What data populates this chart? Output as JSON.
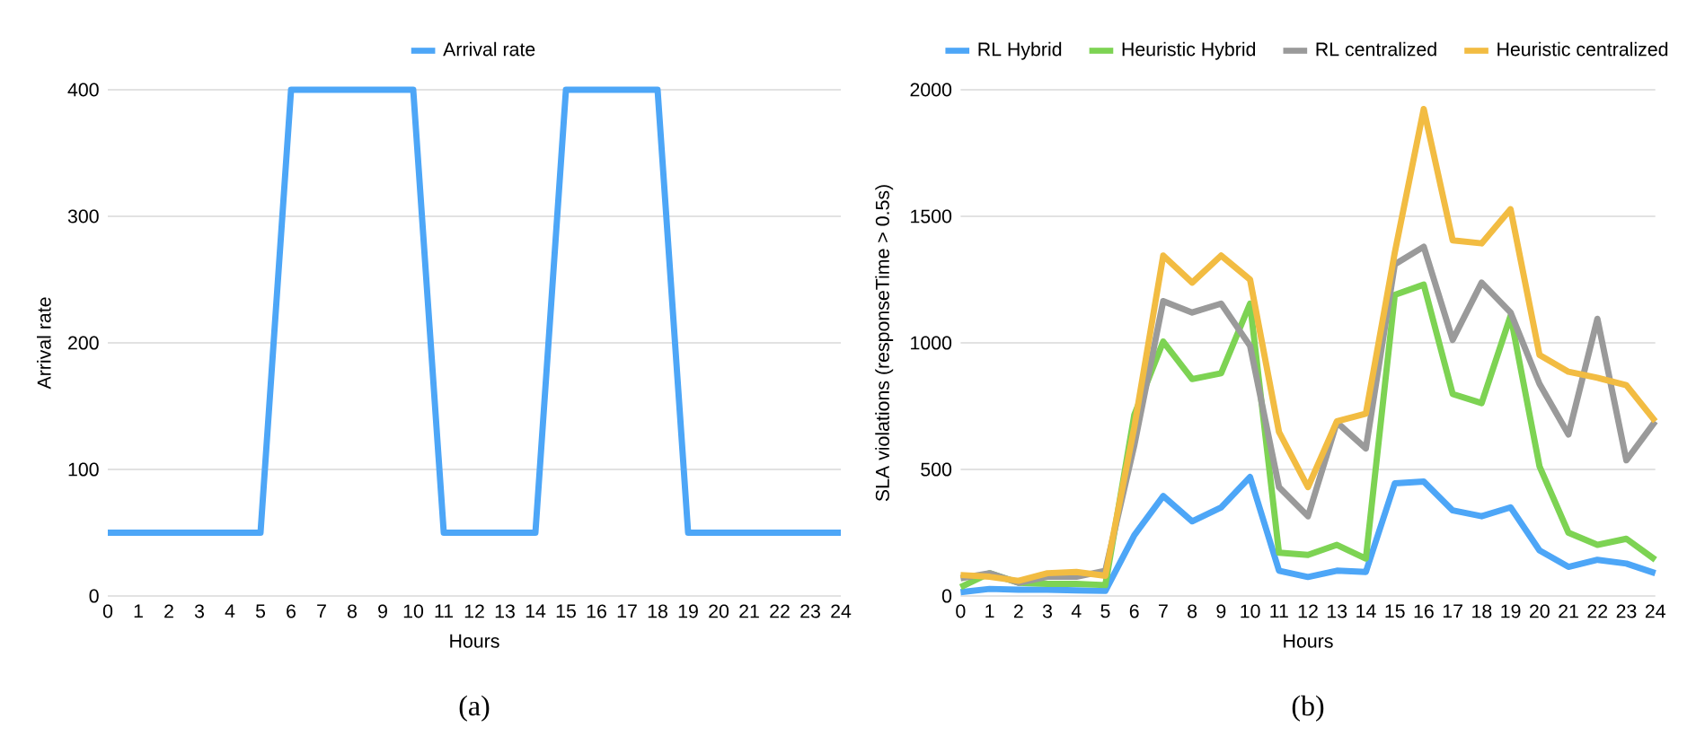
{
  "chart_data": [
    {
      "type": "line",
      "xlabel": "Hours",
      "ylabel": "Arrival rate",
      "x": [
        0,
        1,
        2,
        3,
        4,
        5,
        6,
        7,
        8,
        9,
        10,
        11,
        12,
        13,
        14,
        15,
        16,
        17,
        18,
        19,
        20,
        21,
        22,
        23,
        24
      ],
      "xlim": [
        0,
        24
      ],
      "xticks": [
        0,
        1,
        2,
        3,
        4,
        5,
        6,
        7,
        8,
        9,
        10,
        11,
        12,
        13,
        14,
        15,
        16,
        17,
        18,
        19,
        20,
        21,
        22,
        23,
        24
      ],
      "ylim": [
        0,
        400
      ],
      "yticks": [
        0,
        100,
        200,
        300,
        400
      ],
      "grid": "y",
      "legend": "top",
      "annotations": [
        "(a)"
      ],
      "series": [
        {
          "name": "Arrival rate",
          "color": "#4da6f7",
          "values": [
            50,
            50,
            50,
            50,
            50,
            50,
            400,
            400,
            400,
            400,
            400,
            50,
            50,
            50,
            50,
            400,
            400,
            400,
            400,
            50,
            50,
            50,
            50,
            50,
            50
          ]
        }
      ]
    },
    {
      "type": "line",
      "xlabel": "Hours",
      "ylabel": "SLA violations (responseTime > 0.5s)",
      "x": [
        0,
        1,
        2,
        3,
        4,
        5,
        6,
        7,
        8,
        9,
        10,
        11,
        12,
        13,
        14,
        15,
        16,
        17,
        18,
        19,
        20,
        21,
        22,
        23,
        24
      ],
      "xlim": [
        0,
        24
      ],
      "xticks": [
        0,
        1,
        2,
        3,
        4,
        5,
        6,
        7,
        8,
        9,
        10,
        11,
        12,
        13,
        14,
        15,
        16,
        17,
        18,
        19,
        20,
        21,
        22,
        23,
        24
      ],
      "ylim": [
        0,
        2000
      ],
      "yticks": [
        0,
        500,
        1000,
        1500,
        2000
      ],
      "grid": "y",
      "legend": "top",
      "annotations": [
        "(b)"
      ],
      "series": [
        {
          "name": "RL Hybrid",
          "color": "#4da6f7",
          "values": [
            15,
            28,
            25,
            25,
            22,
            20,
            240,
            395,
            295,
            350,
            470,
            100,
            75,
            100,
            95,
            445,
            452,
            338,
            315,
            350,
            180,
            115,
            143,
            128,
            90
          ]
        },
        {
          "name": "Heuristic Hybrid",
          "color": "#7dd353",
          "values": [
            35,
            90,
            52,
            48,
            48,
            43,
            715,
            1005,
            857,
            880,
            1155,
            171,
            162,
            202,
            148,
            1190,
            1230,
            798,
            762,
            1107,
            512,
            250,
            202,
            226,
            143
          ]
        },
        {
          "name": "RL centralized",
          "color": "#9a9a9a",
          "values": [
            70,
            90,
            52,
            76,
            76,
            100,
            595,
            1165,
            1120,
            1155,
            988,
            430,
            315,
            686,
            583,
            1310,
            1380,
            1012,
            1238,
            1120,
            838,
            638,
            1095,
            536,
            690
          ]
        },
        {
          "name": "Heuristic centralized",
          "color": "#f2bc42",
          "values": [
            83,
            76,
            60,
            90,
            95,
            80,
            667,
            1345,
            1238,
            1345,
            1250,
            648,
            430,
            690,
            720,
            1357,
            1924,
            1405,
            1393,
            1528,
            952,
            886,
            862,
            833,
            690
          ]
        }
      ]
    }
  ]
}
